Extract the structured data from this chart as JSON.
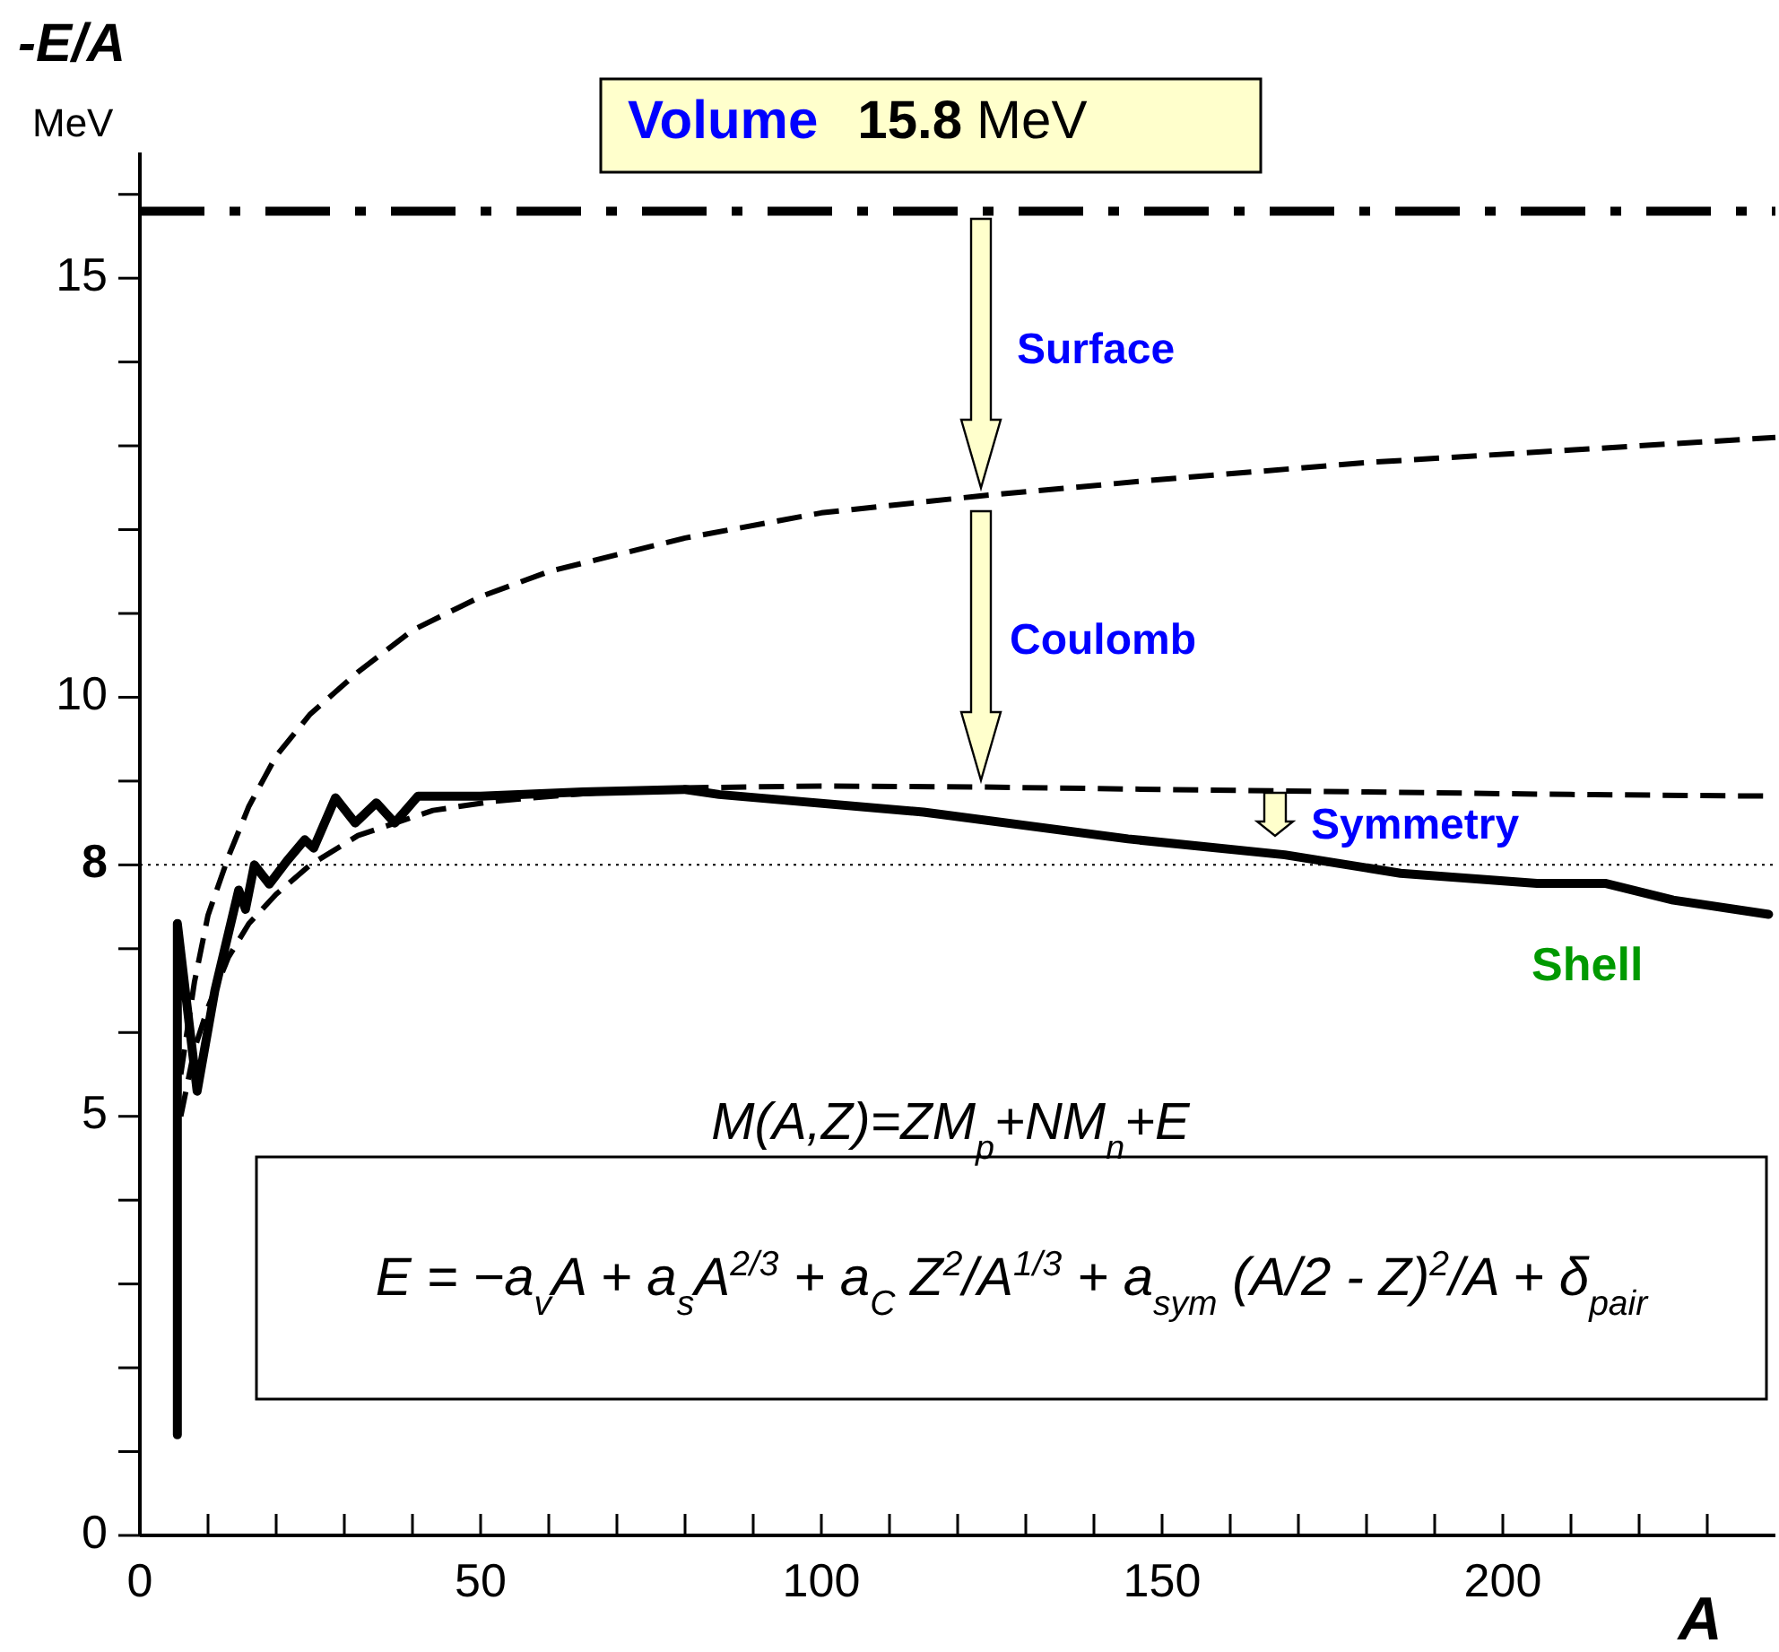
{
  "chart_data": {
    "type": "line",
    "ylabel": "-E/A",
    "xlabel": "A",
    "xlim": [
      0,
      240
    ],
    "ylim": [
      0,
      16.5
    ],
    "xticks": [
      0,
      {
        "value": 10,
        "label": null
      },
      {
        "value": 20,
        "label": null
      },
      {
        "value": 30,
        "label": null
      },
      {
        "value": 40,
        "label": null
      },
      50,
      {
        "value": 60,
        "label": null
      },
      {
        "value": 70,
        "label": null
      },
      {
        "value": 80,
        "label": null
      },
      {
        "value": 90,
        "label": null
      },
      100,
      {
        "value": 110,
        "label": null
      },
      {
        "value": 120,
        "label": null
      },
      {
        "value": 130,
        "label": null
      },
      {
        "value": 140,
        "label": null
      },
      150,
      {
        "value": 160,
        "label": null
      },
      {
        "value": 170,
        "label": null
      },
      {
        "value": 180,
        "label": null
      },
      {
        "value": 190,
        "label": null
      },
      200,
      {
        "value": 210,
        "label": null
      },
      {
        "value": 220,
        "label": null
      },
      {
        "value": 230,
        "label": null
      }
    ],
    "yticks": [
      0,
      {
        "value": 1,
        "label": null
      },
      {
        "value": 2,
        "label": null
      },
      {
        "value": 3,
        "label": null
      },
      {
        "value": 4,
        "label": null
      },
      5,
      {
        "value": 6,
        "label": null
      },
      {
        "value": 7,
        "label": null
      },
      8,
      {
        "value": 9,
        "label": null
      },
      10,
      {
        "value": 11,
        "label": null
      },
      {
        "value": 12,
        "label": null
      },
      {
        "value": 13,
        "label": null
      },
      {
        "value": 14,
        "label": null
      },
      15,
      {
        "value": 16,
        "label": null
      }
    ],
    "series": [
      {
        "color": "#000000",
        "line_style": "dashed",
        "x": [
          6,
          8,
          10,
          13,
          16,
          20,
          25,
          32,
          40,
          50,
          60,
          80,
          100,
          123,
          150,
          180,
          210,
          240
        ],
        "values": [
          5.5,
          6.6,
          7.4,
          8.1,
          8.7,
          9.3,
          9.8,
          10.3,
          10.8,
          11.2,
          11.5,
          11.9,
          12.2,
          12.4,
          12.6,
          12.8,
          12.95,
          13.1
        ]
      },
      {
        "color": "#000000",
        "line_style": "dashed",
        "x": [
          6,
          8,
          10,
          13,
          16,
          20,
          25,
          32,
          43,
          52,
          65,
          80,
          100,
          123,
          150,
          180,
          210,
          240
        ],
        "values": [
          5.0,
          5.8,
          6.3,
          6.9,
          7.3,
          7.65,
          8.0,
          8.35,
          8.65,
          8.76,
          8.85,
          8.92,
          8.94,
          8.93,
          8.9,
          8.87,
          8.84,
          8.82
        ]
      },
      {
        "name": "Shell",
        "color": "#000000",
        "line_style": "solid",
        "x": [
          5.5,
          5.5,
          8.4,
          11,
          14.5,
          15.5,
          16.8,
          19,
          21.6,
          24.2,
          25.5,
          28.7,
          31.6,
          34.7,
          37.4,
          40.8,
          50,
          65,
          80,
          85,
          115,
          145,
          168,
          185,
          205,
          215,
          225,
          239
        ],
        "values": [
          1.2,
          7.3,
          5.3,
          6.5,
          7.7,
          7.47,
          8.0,
          7.77,
          8.05,
          8.3,
          8.2,
          8.8,
          8.5,
          8.74,
          8.5,
          8.82,
          8.82,
          8.87,
          8.9,
          8.84,
          8.63,
          8.31,
          8.12,
          7.9,
          7.78,
          7.78,
          7.58,
          7.41
        ]
      }
    ],
    "ref_lines": [
      {
        "axis": "y",
        "value": 15.8,
        "label": "Volume 15.8 MeV",
        "line_style": "dashdot",
        "color": "#000000"
      },
      {
        "axis": "y",
        "value": 8,
        "line_style": "dotted",
        "color": "#000000"
      }
    ],
    "annotations": [
      "Surface",
      "Coulomb",
      "Symmetry",
      "MeV",
      "M(A,Z)=ZM$_{p}$+NM$_{n}$+E",
      "E = −a$_{v}$A + a$_{s}$A$^{2/3}$ + a$_{C}$ Z$^{2}$/A$^{1/3}$ + a$_{sym}$ (A/2 - Z)$^{2}$/A + δ$_{pair}$"
    ],
    "marker": "none"
  }
}
